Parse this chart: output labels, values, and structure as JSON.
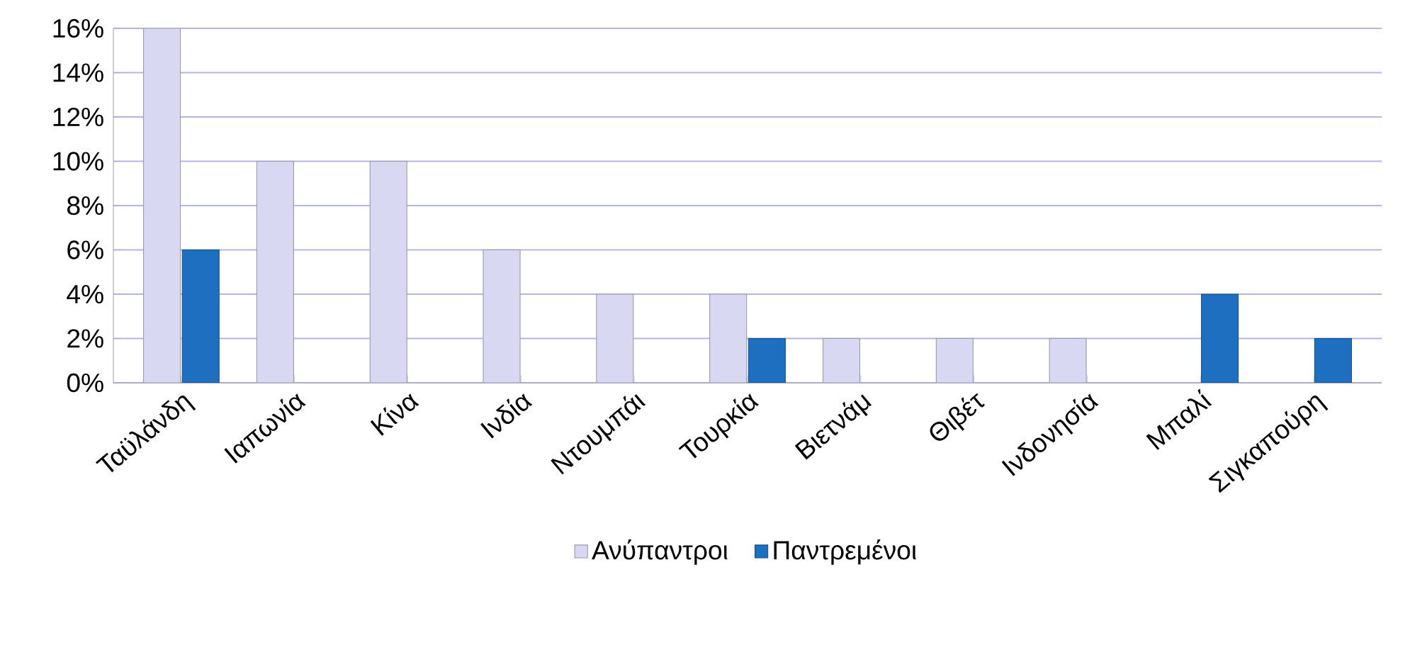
{
  "chart_data": {
    "type": "bar",
    "categories": [
      "Ταϋλάνδη",
      "Ιαπωνία",
      "Κίνα",
      "Ινδία",
      "Ντουμπάι",
      "Τουρκία",
      "Βιετνάμ",
      "Θιβέτ",
      "Ινδονησία",
      "Μπαλί",
      "Σιγκαπούρη"
    ],
    "series": [
      {
        "name": "Ανύπαντροι",
        "color": "#d8d8f2",
        "values": [
          16,
          10,
          10,
          6,
          4,
          4,
          2,
          2,
          2,
          null,
          null
        ]
      },
      {
        "name": "Παντρεμένοι",
        "color": "#1f6fc0",
        "values": [
          6,
          null,
          null,
          null,
          null,
          2,
          null,
          null,
          null,
          4,
          2
        ]
      }
    ],
    "ylim": [
      0,
      16
    ],
    "yticks": [
      {
        "value": 0,
        "label": "0%"
      },
      {
        "value": 2,
        "label": "2%"
      },
      {
        "value": 4,
        "label": "4%"
      },
      {
        "value": 6,
        "label": "6%"
      },
      {
        "value": 8,
        "label": "8%"
      },
      {
        "value": 10,
        "label": "10%"
      },
      {
        "value": 12,
        "label": "12%"
      },
      {
        "value": 14,
        "label": "14%"
      },
      {
        "value": 16,
        "label": "16%"
      }
    ],
    "grid": "y",
    "legend": "bottom"
  }
}
